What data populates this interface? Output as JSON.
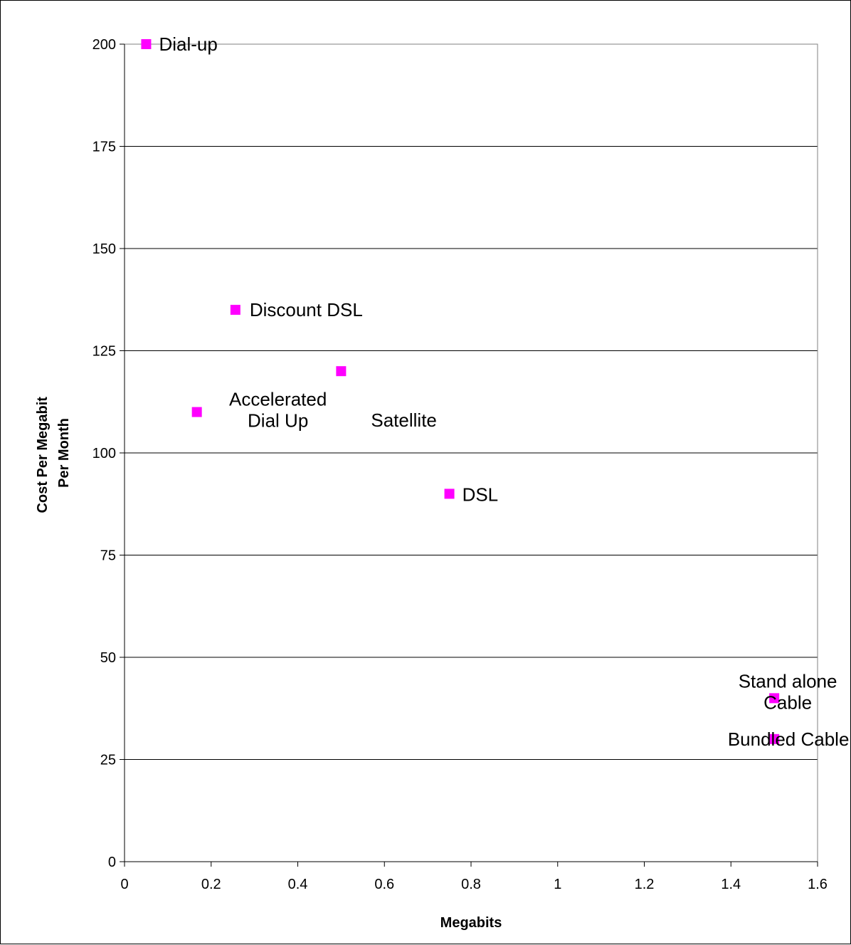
{
  "chart_data": {
    "type": "scatter",
    "title": "",
    "xlabel": "Megabits",
    "ylabel_lines": [
      "Cost Per Megabit",
      "Per Month"
    ],
    "xlim": [
      0,
      1.6
    ],
    "ylim": [
      0,
      200
    ],
    "x_ticks": [
      "0",
      "0.2",
      "0.4",
      "0.6",
      "0.8",
      "1",
      "1.2",
      "1.4",
      "1.6"
    ],
    "y_ticks": [
      "0",
      "25",
      "50",
      "75",
      "100",
      "125",
      "150",
      "175",
      "200"
    ],
    "grid": "horizontal",
    "legend": "none",
    "marker_color": "#FF00FF",
    "points": [
      {
        "x": 0.05,
        "y": 200,
        "label": [
          "Dial-up"
        ]
      },
      {
        "x": 0.256,
        "y": 135,
        "label": [
          "Discount DSL"
        ]
      },
      {
        "x": 0.5,
        "y": 120,
        "label": [
          "Satellite"
        ]
      },
      {
        "x": 0.167,
        "y": 110,
        "label": [
          "Accelerated",
          "Dial Up"
        ]
      },
      {
        "x": 0.75,
        "y": 90,
        "label": [
          "DSL"
        ]
      },
      {
        "x": 1.5,
        "y": 40,
        "label": [
          "Stand alone",
          "Cable"
        ]
      },
      {
        "x": 1.5,
        "y": 30,
        "label": [
          "Bundled Cable"
        ]
      }
    ]
  }
}
